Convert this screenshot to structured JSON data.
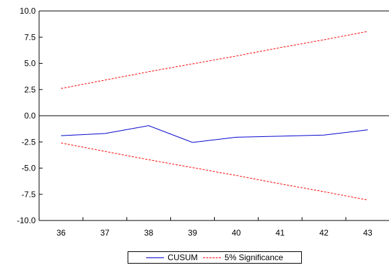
{
  "chart_data": {
    "type": "line",
    "title": "",
    "xlabel": "",
    "ylabel": "",
    "x": [
      36,
      37,
      38,
      39,
      40,
      41,
      42,
      43
    ],
    "x_tick_labels": [
      "36",
      "37",
      "38",
      "39",
      "40",
      "41",
      "42",
      "43"
    ],
    "ylim": [
      -10.0,
      10.0
    ],
    "y_ticks": [
      10.0,
      7.5,
      5.0,
      2.5,
      0.0,
      -2.5,
      -5.0,
      -7.5,
      -10.0
    ],
    "y_tick_labels": [
      "10.0",
      "7.5",
      "5.0",
      "2.5",
      "0.0",
      "-2.5",
      "-5.0",
      "-7.5",
      "-10.0"
    ],
    "zero_line": true,
    "grid": false,
    "legend_position": "bottom-center",
    "series": [
      {
        "name": "CUSUM",
        "color": "#0000cc",
        "style": "solid",
        "values": [
          -1.9,
          -1.7,
          -0.95,
          -2.55,
          -2.05,
          -1.95,
          -1.85,
          -1.35
        ]
      },
      {
        "name": "5% Significance",
        "color": "#ff0000",
        "style": "dashed",
        "values": [
          2.6,
          3.4,
          4.2,
          4.95,
          5.7,
          6.5,
          7.25,
          8.05
        ]
      },
      {
        "name": "5% Significance",
        "color": "#ff0000",
        "style": "dashed",
        "values": [
          -2.6,
          -3.4,
          -4.2,
          -4.95,
          -5.7,
          -6.5,
          -7.25,
          -8.05
        ]
      }
    ],
    "legend": [
      {
        "label": "CUSUM",
        "style": "solid",
        "color": "#0000cc"
      },
      {
        "label": "5% Significance",
        "style": "dashed",
        "color": "#ff0000"
      }
    ]
  }
}
